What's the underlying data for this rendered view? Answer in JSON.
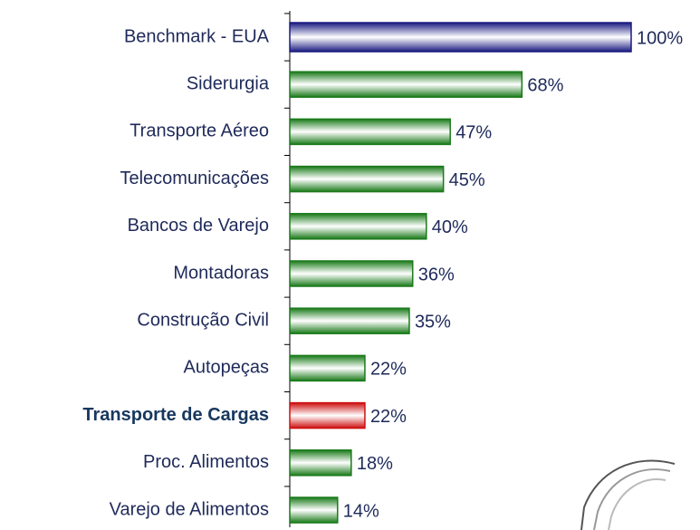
{
  "chart_data": {
    "type": "bar",
    "orientation": "horizontal",
    "categories": [
      "Benchmark - EUA",
      "Siderurgia",
      "Transporte Aéreo",
      "Telecomunicações",
      "Bancos de Varejo",
      "Montadoras",
      "Construção Civil",
      "Autopeças",
      "Transporte de Cargas",
      "Proc. Alimentos",
      "Varejo de Alimentos"
    ],
    "values": [
      100,
      68,
      47,
      45,
      40,
      36,
      35,
      22,
      22,
      18,
      14
    ],
    "value_labels": [
      "100%",
      "68%",
      "47%",
      "45%",
      "40%",
      "36%",
      "35%",
      "22%",
      "22%",
      "18%",
      "14%"
    ],
    "colors": [
      "#1a1a80",
      "#1a7a1a",
      "#1a7a1a",
      "#1a7a1a",
      "#1a7a1a",
      "#1a7a1a",
      "#1a7a1a",
      "#1a7a1a",
      "#cc1010",
      "#1a7a1a",
      "#1a7a1a"
    ],
    "highlight": "Transporte de Cargas",
    "xlim": [
      0,
      100
    ]
  }
}
